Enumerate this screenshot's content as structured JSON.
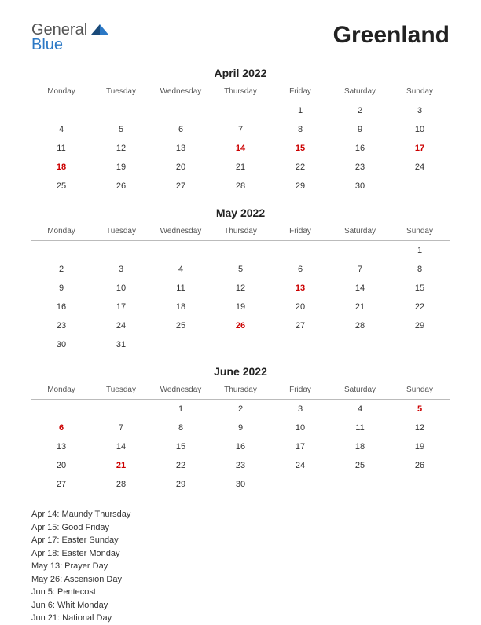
{
  "logo": {
    "general": "General",
    "blue": "Blue"
  },
  "title": "Greenland",
  "day_headers": [
    "Monday",
    "Tuesday",
    "Wednesday",
    "Thursday",
    "Friday",
    "Saturday",
    "Sunday"
  ],
  "colors": {
    "text": "#333333",
    "holiday": "#cc0000",
    "header_text": "#555555",
    "divider": "#bbbbbb",
    "logo_blue": "#2b78c5",
    "background": "#ffffff"
  },
  "months": [
    {
      "title": "April 2022",
      "weeks": [
        [
          null,
          null,
          null,
          null,
          {
            "d": 1
          },
          {
            "d": 2
          },
          {
            "d": 3
          }
        ],
        [
          {
            "d": 4
          },
          {
            "d": 5
          },
          {
            "d": 6
          },
          {
            "d": 7
          },
          {
            "d": 8
          },
          {
            "d": 9
          },
          {
            "d": 10
          }
        ],
        [
          {
            "d": 11
          },
          {
            "d": 12
          },
          {
            "d": 13
          },
          {
            "d": 14,
            "h": true
          },
          {
            "d": 15,
            "h": true
          },
          {
            "d": 16
          },
          {
            "d": 17,
            "h": true
          }
        ],
        [
          {
            "d": 18,
            "h": true
          },
          {
            "d": 19
          },
          {
            "d": 20
          },
          {
            "d": 21
          },
          {
            "d": 22
          },
          {
            "d": 23
          },
          {
            "d": 24
          }
        ],
        [
          {
            "d": 25
          },
          {
            "d": 26
          },
          {
            "d": 27
          },
          {
            "d": 28
          },
          {
            "d": 29
          },
          {
            "d": 30
          },
          null
        ]
      ]
    },
    {
      "title": "May 2022",
      "weeks": [
        [
          null,
          null,
          null,
          null,
          null,
          null,
          {
            "d": 1
          }
        ],
        [
          {
            "d": 2
          },
          {
            "d": 3
          },
          {
            "d": 4
          },
          {
            "d": 5
          },
          {
            "d": 6
          },
          {
            "d": 7
          },
          {
            "d": 8
          }
        ],
        [
          {
            "d": 9
          },
          {
            "d": 10
          },
          {
            "d": 11
          },
          {
            "d": 12
          },
          {
            "d": 13,
            "h": true
          },
          {
            "d": 14
          },
          {
            "d": 15
          }
        ],
        [
          {
            "d": 16
          },
          {
            "d": 17
          },
          {
            "d": 18
          },
          {
            "d": 19
          },
          {
            "d": 20
          },
          {
            "d": 21
          },
          {
            "d": 22
          }
        ],
        [
          {
            "d": 23
          },
          {
            "d": 24
          },
          {
            "d": 25
          },
          {
            "d": 26,
            "h": true
          },
          {
            "d": 27
          },
          {
            "d": 28
          },
          {
            "d": 29
          }
        ],
        [
          {
            "d": 30
          },
          {
            "d": 31
          },
          null,
          null,
          null,
          null,
          null
        ]
      ]
    },
    {
      "title": "June 2022",
      "weeks": [
        [
          null,
          null,
          {
            "d": 1
          },
          {
            "d": 2
          },
          {
            "d": 3
          },
          {
            "d": 4
          },
          {
            "d": 5,
            "h": true
          }
        ],
        [
          {
            "d": 6,
            "h": true
          },
          {
            "d": 7
          },
          {
            "d": 8
          },
          {
            "d": 9
          },
          {
            "d": 10
          },
          {
            "d": 11
          },
          {
            "d": 12
          }
        ],
        [
          {
            "d": 13
          },
          {
            "d": 14
          },
          {
            "d": 15
          },
          {
            "d": 16
          },
          {
            "d": 17
          },
          {
            "d": 18
          },
          {
            "d": 19
          }
        ],
        [
          {
            "d": 20
          },
          {
            "d": 21,
            "h": true
          },
          {
            "d": 22
          },
          {
            "d": 23
          },
          {
            "d": 24
          },
          {
            "d": 25
          },
          {
            "d": 26
          }
        ],
        [
          {
            "d": 27
          },
          {
            "d": 28
          },
          {
            "d": 29
          },
          {
            "d": 30
          },
          null,
          null,
          null
        ]
      ]
    }
  ],
  "holiday_list": [
    "Apr 14: Maundy Thursday",
    "Apr 15: Good Friday",
    "Apr 17: Easter Sunday",
    "Apr 18: Easter Monday",
    "May 13: Prayer Day",
    "May 26: Ascension Day",
    "Jun 5: Pentecost",
    "Jun 6: Whit Monday",
    "Jun 21: National Day"
  ]
}
